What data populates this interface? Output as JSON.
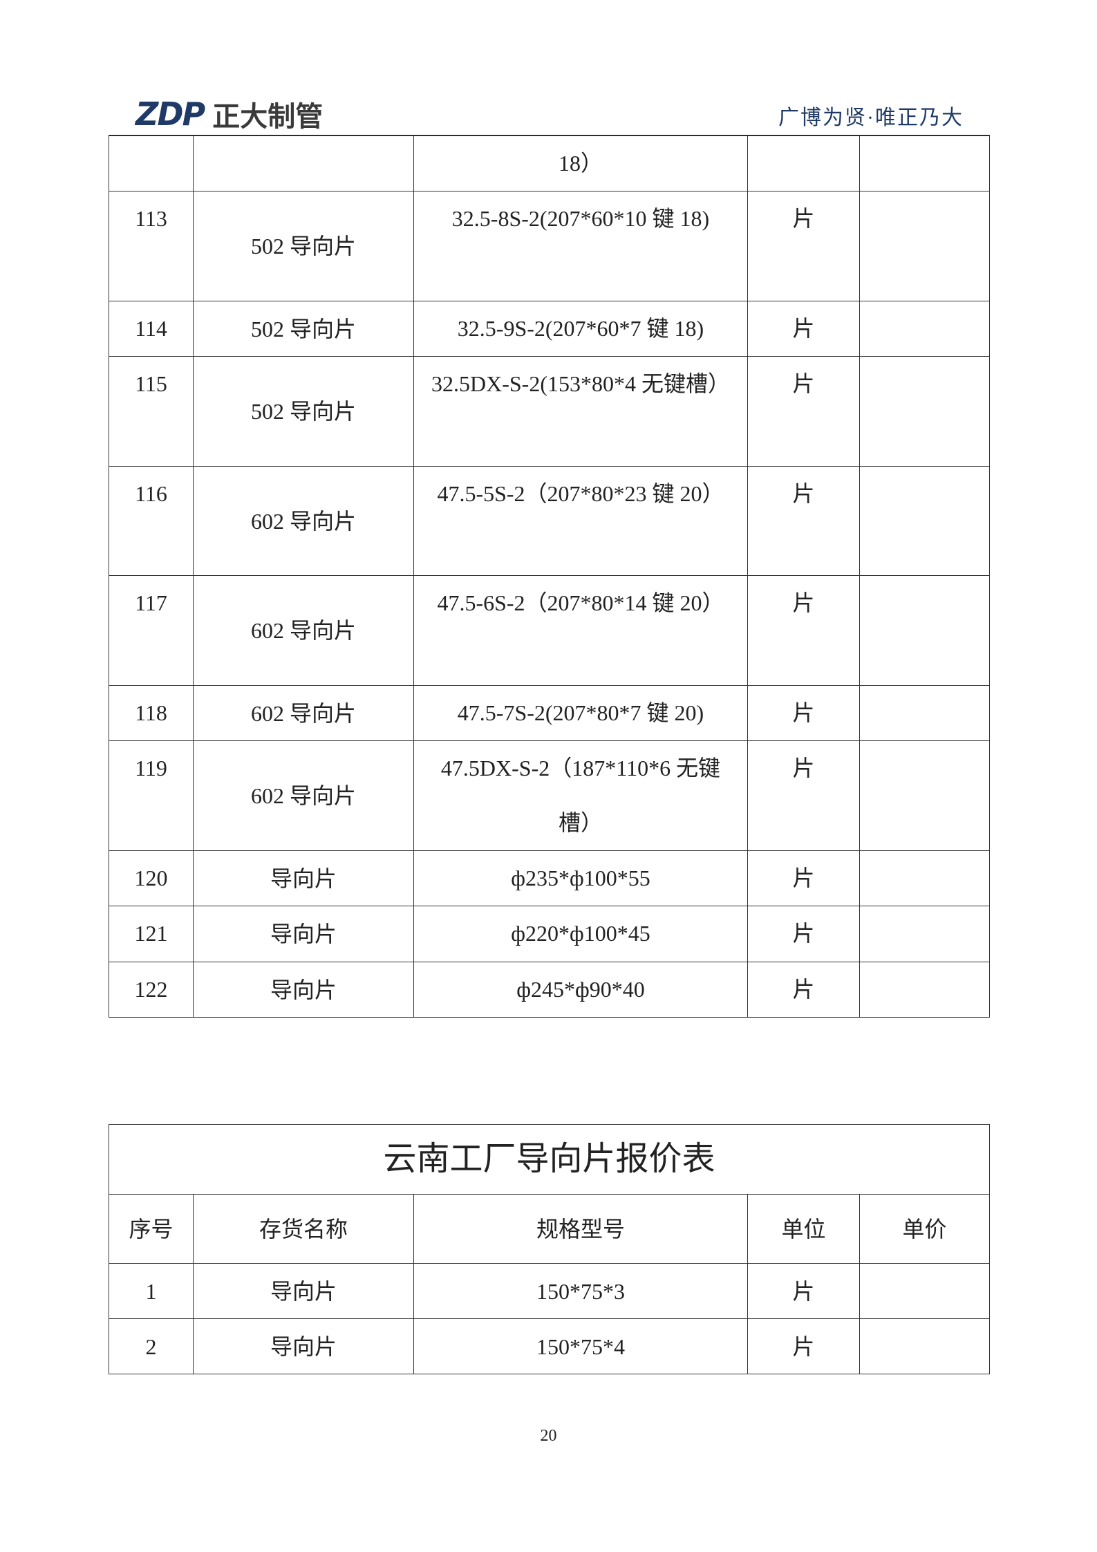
{
  "header": {
    "logo_mark": "ZDP",
    "logo_text": "正大制管",
    "slogan": "广博为贤·唯正乃大",
    "brand_color": "#1f3a66"
  },
  "table1": {
    "rows": [
      {
        "no": "",
        "name": "",
        "spec": "18）",
        "unit": "",
        "price": "",
        "h": 80
      },
      {
        "no": "113",
        "name": "502 导向片",
        "spec": "32.5-8S-2(207*60*10 键 18)",
        "unit": "片",
        "price": "",
        "h": 159
      },
      {
        "no": "114",
        "name": "502 导向片",
        "spec": "32.5-9S-2(207*60*7 键 18)",
        "unit": "片",
        "price": "",
        "h": 80
      },
      {
        "no": "115",
        "name": "502 导向片",
        "spec": "32.5DX-S-2(153*80*4 无键槽）",
        "unit": "片",
        "price": "",
        "h": 159
      },
      {
        "no": "116",
        "name": "602 导向片",
        "spec": "47.5-5S-2（207*80*23 键 20）",
        "unit": "片",
        "price": "",
        "h": 158
      },
      {
        "no": "117",
        "name": "602 导向片",
        "spec": "47.5-6S-2（207*80*14 键 20）",
        "unit": "片",
        "price": "",
        "h": 159
      },
      {
        "no": "118",
        "name": "602 导向片",
        "spec": "47.5-7S-2(207*80*7 键 20)",
        "unit": "片",
        "price": "",
        "h": 80
      },
      {
        "no": "119",
        "name": "602 导向片",
        "spec": "47.5DX-S-2（187*110*6 无键槽）",
        "unit": "片",
        "price": "",
        "h": 158
      },
      {
        "no": "120",
        "name": "导向片",
        "spec": "ф235*ф100*55",
        "unit": "片",
        "price": "",
        "h": 80
      },
      {
        "no": "121",
        "name": "导向片",
        "spec": "ф220*ф100*45",
        "unit": "片",
        "price": "",
        "h": 81
      },
      {
        "no": "122",
        "name": "导向片",
        "spec": "ф245*ф90*40",
        "unit": "片",
        "price": "",
        "h": 80
      }
    ]
  },
  "table2": {
    "title": "云南工厂导向片报价表",
    "columns": [
      "序号",
      "存货名称",
      "规格型号",
      "单位",
      "单价"
    ],
    "rows": [
      {
        "no": "1",
        "name": "导向片",
        "spec": "150*75*3",
        "unit": "片",
        "price": ""
      },
      {
        "no": "2",
        "name": "导向片",
        "spec": "150*75*4",
        "unit": "片",
        "price": ""
      }
    ]
  },
  "page_number": "20"
}
